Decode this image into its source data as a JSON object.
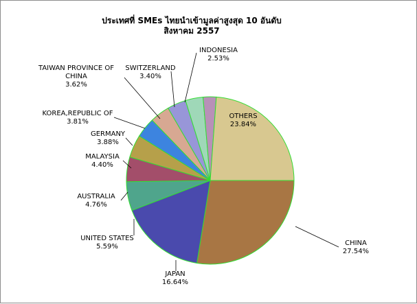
{
  "chart_data": {
    "type": "pie",
    "title": "ประเทศที่ SMEs ไทยนำเข้ามูลค่าสูงสุด  10  อันดับ",
    "subtitle": "สิงหาคม 2557",
    "slices": [
      {
        "name": "CHINA",
        "pct_label": "27.54%",
        "value": 27.54,
        "color": "#a87644"
      },
      {
        "name": "JAPAN",
        "pct_label": "16.64%",
        "value": 16.64,
        "color": "#4a4aad"
      },
      {
        "name": "UNITED STATES",
        "pct_label": "5.59%",
        "value": 5.59,
        "color": "#4fa58c"
      },
      {
        "name": "AUSTRALIA",
        "pct_label": "4.76%",
        "value": 4.76,
        "color": "#a34e6a"
      },
      {
        "name": "MALAYSIA",
        "pct_label": "4.40%",
        "value": 4.4,
        "color": "#b6a04a"
      },
      {
        "name": "GERMANY",
        "pct_label": "3.88%",
        "value": 3.88,
        "color": "#3d84df"
      },
      {
        "name": "KOREA,REPUBLIC OF",
        "pct_label": "3.81%",
        "value": 3.81,
        "color": "#d7a892"
      },
      {
        "name": "TAIWAN PROVINCE OF CHINA",
        "name_lines": [
          "TAIWAN PROVINCE OF",
          "CHINA"
        ],
        "pct_label": "3.62%",
        "value": 3.62,
        "color": "#9896d8"
      },
      {
        "name": "SWITZERLAND",
        "pct_label": "3.40%",
        "value": 3.4,
        "color": "#9fd8b8"
      },
      {
        "name": "INDONESIA",
        "pct_label": "2.53%",
        "value": 2.53,
        "color": "#b890b8"
      },
      {
        "name": "OTHERS",
        "pct_label": "23.84%",
        "value": 23.84,
        "color": "#d8c890"
      }
    ],
    "slice_border_color": "#33dd33",
    "legend": "none"
  }
}
